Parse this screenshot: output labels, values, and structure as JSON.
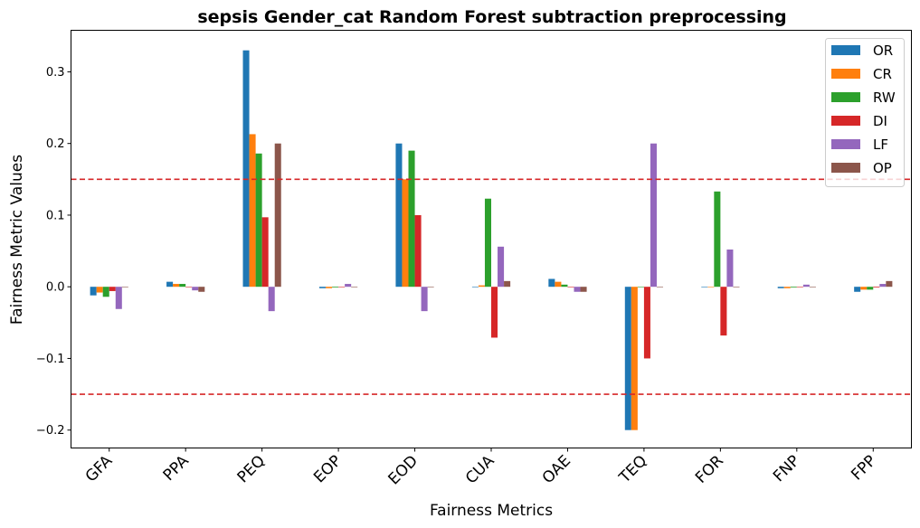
{
  "chart_data": {
    "type": "bar",
    "title": "sepsis Gender_cat Random Forest subtraction preprocessing",
    "xlabel": "Fairness Metrics",
    "ylabel": "Fairness Metric Values",
    "categories": [
      "GFA",
      "PPA",
      "PEQ",
      "EOP",
      "EOD",
      "CUA",
      "OAE",
      "TEQ",
      "FOR",
      "FNP",
      "FPP"
    ],
    "ylim": [
      -0.225,
      0.358
    ],
    "yticks": [
      -0.2,
      -0.1,
      0.0,
      0.1,
      0.2,
      0.3
    ],
    "ytick_labels": [
      "−0.2",
      "−0.1",
      "0.0",
      "0.1",
      "0.2",
      "0.3"
    ],
    "thresholds": [
      0.15,
      -0.15
    ],
    "threshold_color": "#d62728",
    "legend_position": "top-right",
    "grid": false,
    "series": [
      {
        "name": "OR",
        "color": "#1f77b4",
        "values": [
          -0.012,
          0.007,
          0.33,
          -0.002,
          0.2,
          0.0,
          0.011,
          -0.2,
          0.0,
          -0.002,
          -0.007
        ]
      },
      {
        "name": "CR",
        "color": "#ff7f0e",
        "values": [
          -0.008,
          0.004,
          0.213,
          -0.002,
          0.15,
          0.002,
          0.007,
          -0.2,
          0.0,
          -0.002,
          -0.004
        ]
      },
      {
        "name": "RW",
        "color": "#2ca02c",
        "values": [
          -0.014,
          0.004,
          0.186,
          -0.001,
          0.19,
          0.123,
          0.003,
          0.0,
          0.133,
          -0.001,
          -0.004
        ]
      },
      {
        "name": "DI",
        "color": "#d62728",
        "values": [
          -0.006,
          0.0,
          0.097,
          0.0,
          0.1,
          -0.071,
          0.0,
          -0.1,
          -0.068,
          0.0,
          -0.001
        ]
      },
      {
        "name": "LF",
        "color": "#9467bd",
        "values": [
          -0.031,
          -0.005,
          -0.034,
          0.004,
          -0.034,
          0.056,
          -0.007,
          0.2,
          0.052,
          0.003,
          0.004
        ]
      },
      {
        "name": "OP",
        "color": "#8c564b",
        "values": [
          0.0,
          -0.007,
          0.2,
          0.0,
          0.0,
          0.008,
          -0.007,
          0.0,
          0.0,
          0.0,
          0.008
        ]
      }
    ]
  }
}
